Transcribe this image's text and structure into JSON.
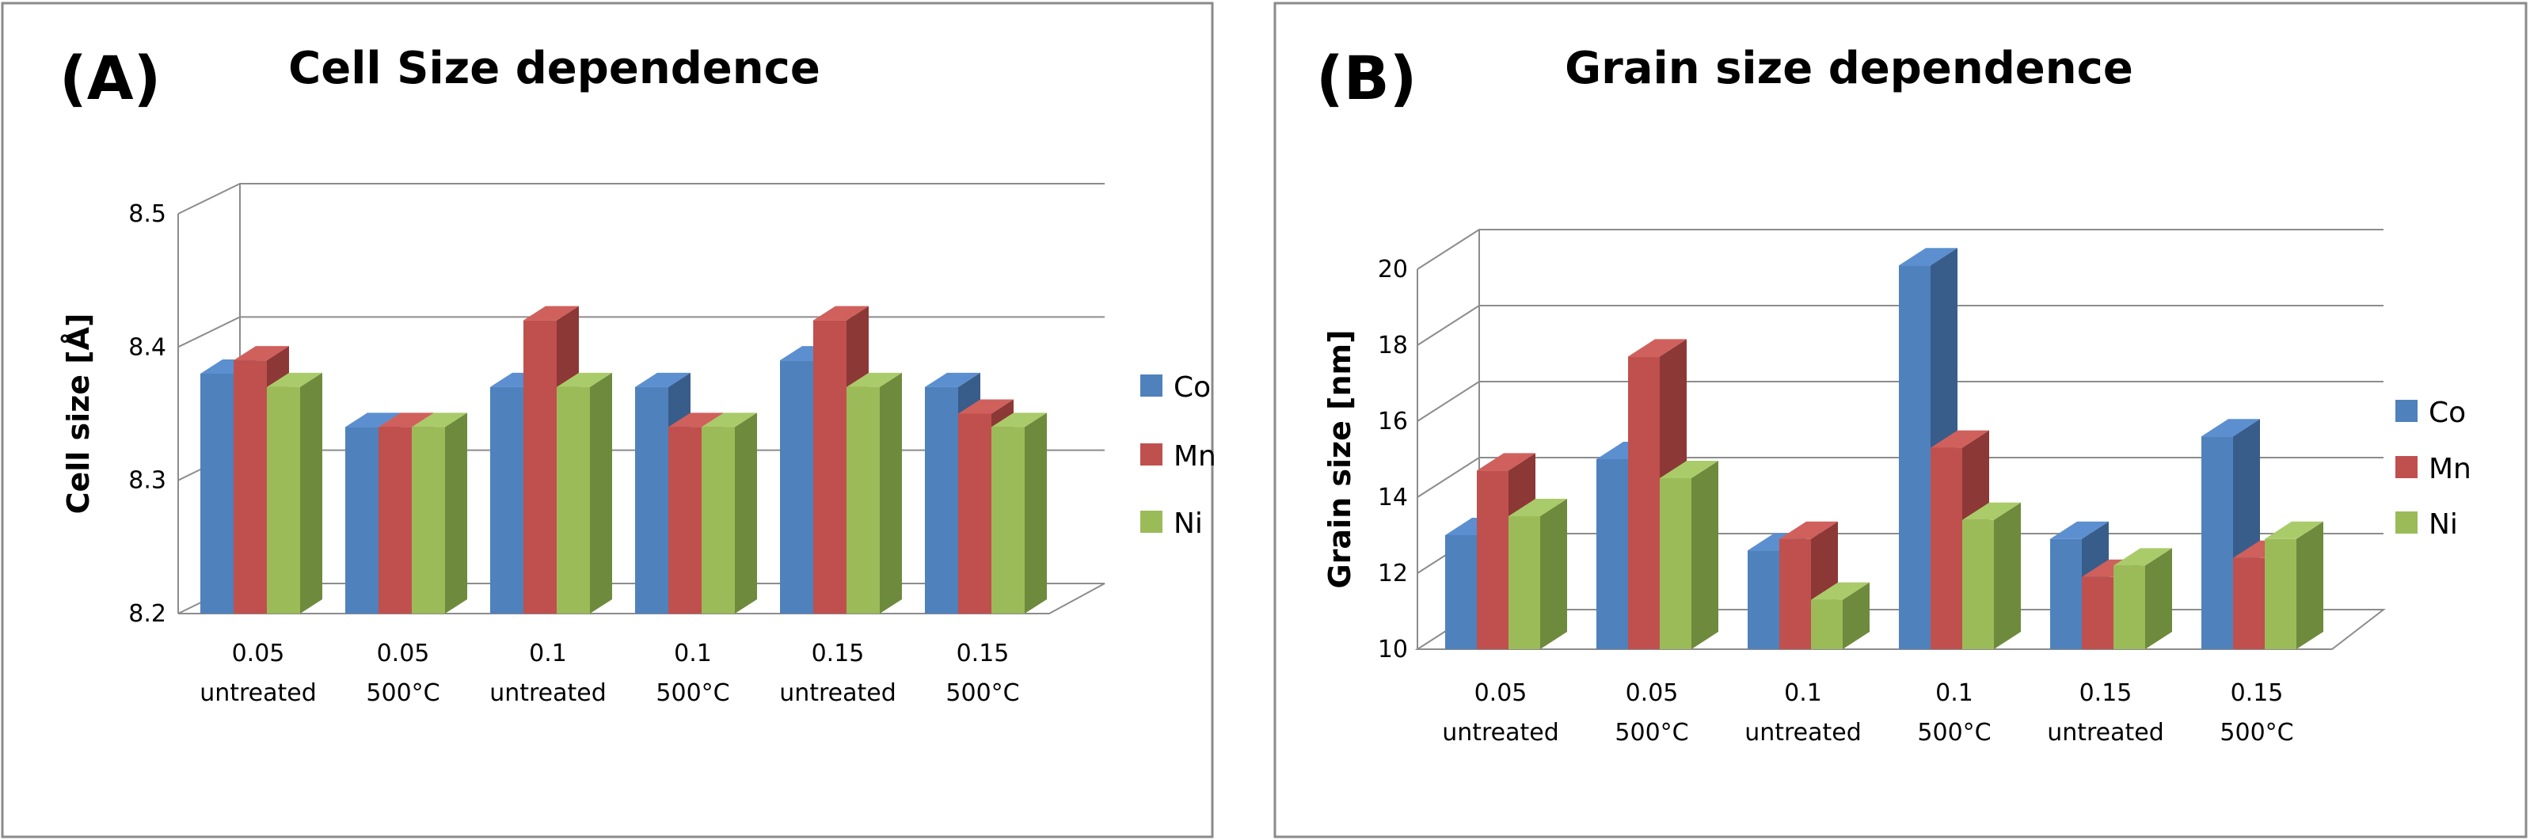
{
  "chart_data": [
    {
      "panel_label": "(A)",
      "type": "bar",
      "title": "Cell Size dependence",
      "ylabel": "Cell size [Å]",
      "xlabel": "",
      "ylim": [
        8.2,
        8.5
      ],
      "yticks": [
        "8.2",
        "8.3",
        "8.4",
        "8.5"
      ],
      "categories": [
        [
          "0.05",
          "untreated"
        ],
        [
          "0.05",
          "500°C"
        ],
        [
          "0.1",
          "untreated"
        ],
        [
          "0.1",
          "500°C"
        ],
        [
          "0.15",
          "untreated"
        ],
        [
          "0.15",
          "500°C"
        ]
      ],
      "series": [
        {
          "name": "Co",
          "values": [
            8.38,
            8.34,
            8.37,
            8.37,
            8.39,
            8.37
          ]
        },
        {
          "name": "Mn",
          "values": [
            8.39,
            8.34,
            8.42,
            8.34,
            8.42,
            8.35
          ]
        },
        {
          "name": "Ni",
          "values": [
            8.37,
            8.34,
            8.37,
            8.34,
            8.37,
            8.34
          ]
        }
      ],
      "legend": "right",
      "grid": true
    },
    {
      "panel_label": "(B)",
      "type": "bar",
      "title": "Grain size dependence",
      "ylabel": "Grain size [nm]",
      "xlabel": "",
      "ylim": [
        10,
        20
      ],
      "yticks": [
        "10",
        "12",
        "14",
        "16",
        "18",
        "20"
      ],
      "categories": [
        [
          "0.05",
          "untreated"
        ],
        [
          "0.05",
          "500°C"
        ],
        [
          "0.1",
          "untreated"
        ],
        [
          "0.1",
          "500°C"
        ],
        [
          "0.15",
          "untreated"
        ],
        [
          "0.15",
          "500°C"
        ]
      ],
      "series": [
        {
          "name": "Co",
          "values": [
            13.0,
            15.0,
            12.6,
            20.1,
            12.9,
            15.6
          ]
        },
        {
          "name": "Mn",
          "values": [
            14.7,
            17.7,
            12.9,
            15.3,
            11.9,
            12.4
          ]
        },
        {
          "name": "Ni",
          "values": [
            13.5,
            14.5,
            11.3,
            13.4,
            12.2,
            12.9
          ]
        }
      ],
      "legend": "right",
      "grid": true
    }
  ],
  "colors": {
    "Co": {
      "front": "#4f81bd",
      "side": "#385d8a",
      "top": "#5b8fd0"
    },
    "Mn": {
      "front": "#c0504d",
      "side": "#8c3836",
      "top": "#d0605c"
    },
    "Ni": {
      "front": "#9bbb59",
      "side": "#6e8a3c",
      "top": "#aacb6a"
    }
  }
}
